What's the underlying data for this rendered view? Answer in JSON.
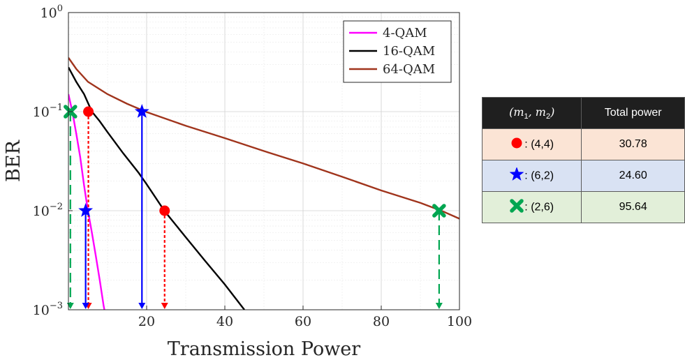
{
  "colors": {
    "qam4": "#ff00ff",
    "qam16": "#000000",
    "qam64": "#a0341c",
    "red": "#ff0000",
    "blue": "#0000ff",
    "green": "#00a651"
  },
  "chart_data": {
    "type": "line",
    "xlabel": "Transmission Power",
    "ylabel": "BER",
    "xlim": [
      0,
      100
    ],
    "ylim": [
      0.001,
      1
    ],
    "yscale": "log",
    "xticks": [
      "20",
      "40",
      "60",
      "80",
      "100"
    ],
    "yticks": [
      {
        "base": "10",
        "exp": "0"
      },
      {
        "base": "10",
        "exp": "−1"
      },
      {
        "base": "10",
        "exp": "−2"
      },
      {
        "base": "10",
        "exp": "−3"
      }
    ],
    "grid": true,
    "legend": {
      "position": "top-right",
      "entries": [
        "4-QAM",
        "16-QAM",
        "64-QAM"
      ]
    },
    "series": [
      {
        "name": "4-QAM",
        "color": "#ff00ff",
        "x": [
          0,
          1,
          2,
          3,
          4,
          5,
          6,
          7,
          8,
          9,
          9.2
        ],
        "y": [
          0.15,
          0.1,
          0.06,
          0.035,
          0.018,
          0.0099,
          0.006,
          0.0035,
          0.002,
          0.0011,
          0.001
        ]
      },
      {
        "name": "16-QAM",
        "color": "#000000",
        "x": [
          0,
          2,
          4,
          6,
          8,
          10,
          14,
          18,
          20,
          24.6,
          30,
          35,
          40,
          45
        ],
        "y": [
          0.28,
          0.2,
          0.15,
          0.1,
          0.08,
          0.062,
          0.038,
          0.024,
          0.0185,
          0.0099,
          0.0054,
          0.0031,
          0.0018,
          0.001
        ]
      },
      {
        "name": "64-QAM",
        "color": "#a0341c",
        "x": [
          0,
          2,
          5,
          10,
          15,
          20,
          30,
          40,
          50,
          60,
          70,
          80,
          90,
          95.6,
          100
        ],
        "y": [
          0.35,
          0.27,
          0.2,
          0.15,
          0.12,
          0.099,
          0.072,
          0.054,
          0.04,
          0.03,
          0.022,
          0.016,
          0.012,
          0.0099,
          0.0083
        ]
      }
    ],
    "annotations": [
      {
        "group": "(4,4)",
        "marker": "circle",
        "color": "#ff0000",
        "style": "dotted",
        "points": [
          {
            "x": 5.1,
            "y": 0.1
          },
          {
            "x": 24.6,
            "y": 0.01
          }
        ]
      },
      {
        "group": "(6,2)",
        "marker": "star",
        "color": "#0000ff",
        "style": "solid",
        "points": [
          {
            "x": 4.4,
            "y": 0.01
          },
          {
            "x": 18.8,
            "y": 0.1
          }
        ]
      },
      {
        "group": "(2,6)",
        "marker": "cross",
        "color": "#00a651",
        "style": "dashed",
        "points": [
          {
            "x": 0.5,
            "y": 0.1
          },
          {
            "x": 94.8,
            "y": 0.01
          }
        ]
      }
    ]
  },
  "table": {
    "header_col1": {
      "m1": "m",
      "s1": "1",
      "m2": "m",
      "s2": "2"
    },
    "header_col2": "Total power",
    "rows": [
      {
        "marker": "circle",
        "color": "#ff0000",
        "bg": "#fbe4d5",
        "pair": ": (4,4)",
        "value": "30.78"
      },
      {
        "marker": "star",
        "color": "#0000ff",
        "bg": "#d9e2f3",
        "pair": ": (6,2)",
        "value": "24.60"
      },
      {
        "marker": "cross",
        "color": "#00a651",
        "bg": "#e2efd9",
        "pair": ": (2,6)",
        "value": "95.64"
      }
    ]
  }
}
